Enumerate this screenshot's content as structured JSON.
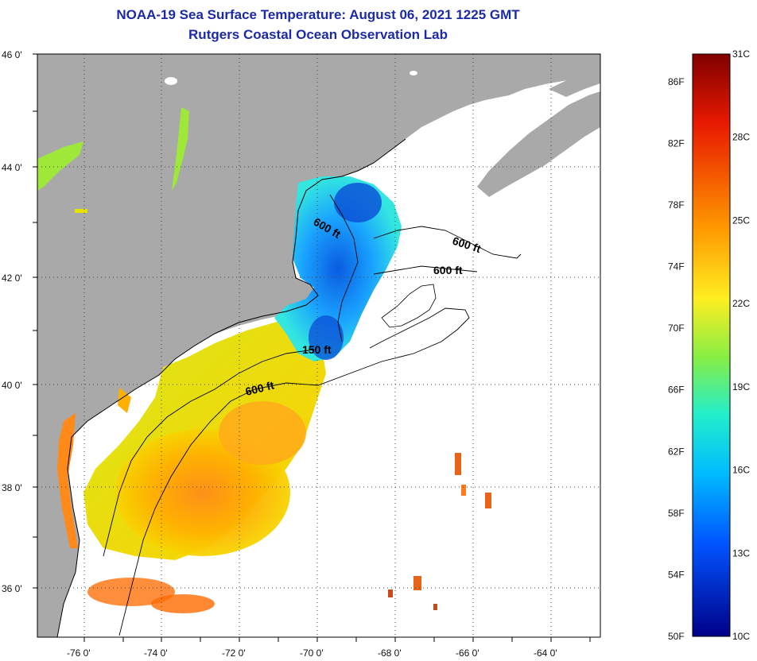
{
  "title": {
    "line1": "NOAA-19 Sea Surface Temperature:  August 06, 2021 1225 GMT",
    "line2": "Rutgers Coastal Ocean Observation Lab"
  },
  "map": {
    "lat_labels": [
      "46 0'",
      "44 0'",
      "42 0'",
      "40 0'",
      "38 0'",
      "36 0'"
    ],
    "lon_labels": [
      "-76 0'",
      "-74 0'",
      "-72 0'",
      "-70 0'",
      "-68 0'",
      "-66 0'",
      "-64 0'"
    ],
    "contour_labels": [
      "600 ft",
      "600 ft",
      "600 ft",
      "150 ft",
      "600 ft"
    ],
    "colors": {
      "land": "#a9a9a9",
      "no_data": "#ffffff",
      "grid": "#555555"
    }
  },
  "colorbar": {
    "fahrenheit_labels": [
      "86F",
      "82F",
      "78F",
      "74F",
      "70F",
      "66F",
      "62F",
      "58F",
      "54F",
      "50F"
    ],
    "celsius_labels": [
      "31C",
      "28C",
      "25C",
      "22C",
      "19C",
      "16C",
      "13C",
      "10C"
    ],
    "range_c": [
      10,
      31
    ],
    "gradient": [
      "#800000",
      "#ff2a00",
      "#ff9900",
      "#ffff33",
      "#33ff99",
      "#00e6ff",
      "#0077ff",
      "#0000b3",
      "#000080"
    ]
  }
}
